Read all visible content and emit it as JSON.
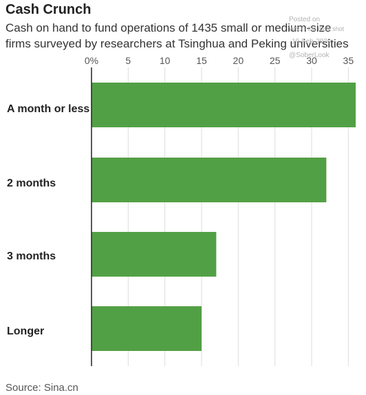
{
  "title": "Cash Crunch",
  "subtitle": "Cash on hand to fund operations of 1435 small or medium-size firms surveyed by researchers at Tsinghua and Peking universities",
  "watermark": {
    "line1": "Posted on",
    "line2": "WSJ - the daily shot",
    "line3": "19-Feb-2020",
    "line4": "@SoberLook"
  },
  "source": "Source: Sina.cn",
  "chart_data": {
    "type": "bar",
    "orientation": "horizontal",
    "categories": [
      "A month or less",
      "2 months",
      "3 months",
      "Longer"
    ],
    "values": [
      36,
      32,
      17,
      15
    ],
    "xlim": [
      0,
      36
    ],
    "ticks": [
      0,
      5,
      10,
      15,
      20,
      25,
      30,
      35
    ],
    "tick_labels": [
      "0%",
      "5",
      "10",
      "15",
      "20",
      "25",
      "30",
      "35"
    ],
    "grid": true,
    "bar_color": "#52a045",
    "axis_position": "top"
  }
}
